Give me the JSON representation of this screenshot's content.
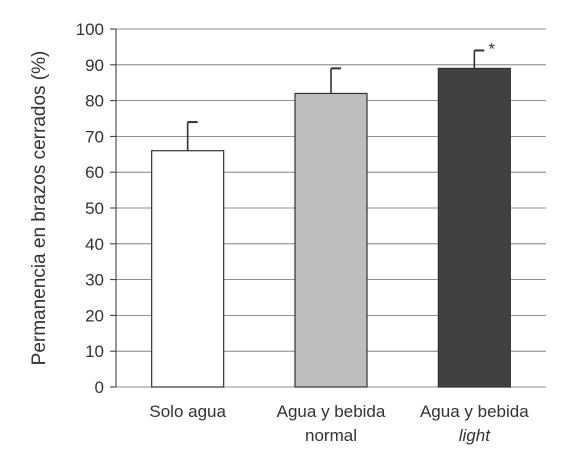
{
  "chart_data": {
    "type": "bar",
    "title": "",
    "xlabel": "",
    "ylabel": "Permanencia en brazos cerrados (%)",
    "ylim": [
      0,
      100
    ],
    "yticks": [
      0,
      10,
      20,
      30,
      40,
      50,
      60,
      70,
      80,
      90,
      100
    ],
    "grid": true,
    "categories": [
      {
        "lines": [
          "Solo agua"
        ],
        "italic": [
          false
        ]
      },
      {
        "lines": [
          "Agua y bebida",
          "normal"
        ],
        "italic": [
          false,
          false
        ]
      },
      {
        "lines": [
          "Agua y bebida",
          "light"
        ],
        "italic": [
          false,
          true
        ]
      }
    ],
    "values": [
      66,
      82,
      89
    ],
    "error_upper": [
      74,
      89,
      94
    ],
    "colors": [
      "#ffffff",
      "#bcbec0",
      "#414143"
    ],
    "annotations": [
      {
        "category_index": 2,
        "text": "*"
      }
    ]
  }
}
